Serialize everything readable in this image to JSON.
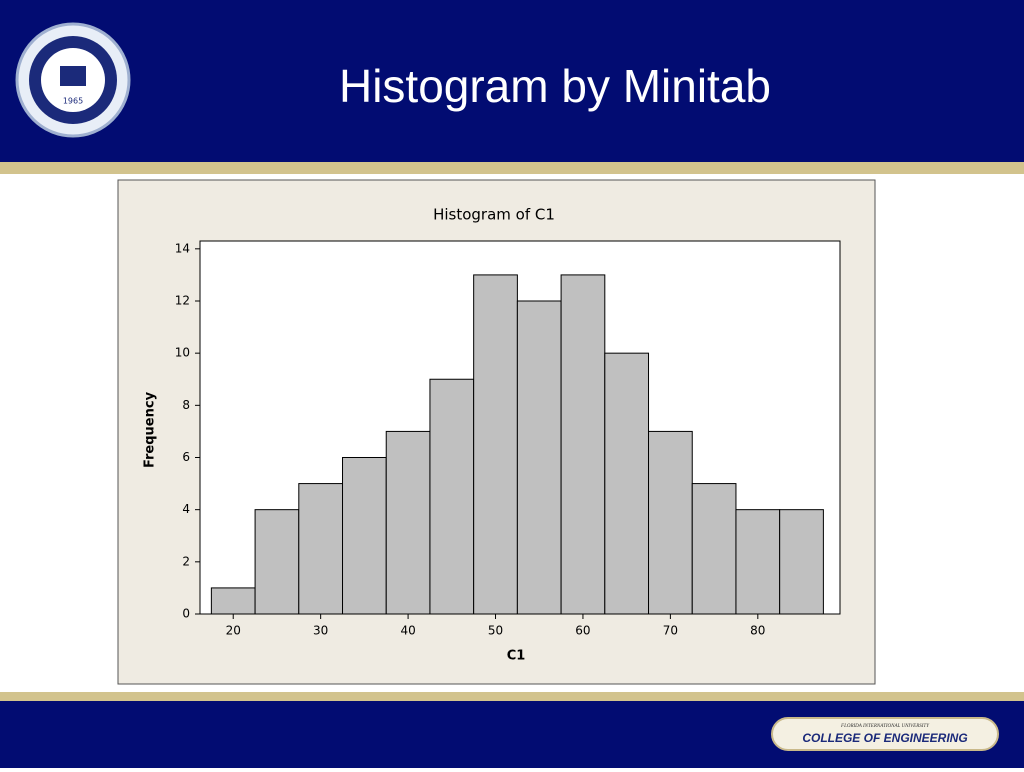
{
  "slide": {
    "title": "Histogram by Minitab",
    "seal_year": "1965",
    "footer_university": "FLORIDA INTERNATIONAL UNIVERSITY",
    "footer_college": "COLLEGE OF ENGINEERING"
  },
  "chart_data": {
    "type": "histogram",
    "title": "Histogram of C1",
    "x_label": "C1",
    "y_label": "Frequency",
    "bins": [
      17.5,
      22.5,
      27.5,
      32.5,
      37.5,
      42.5,
      47.5,
      52.5,
      57.5,
      62.5,
      67.5,
      72.5,
      77.5,
      82.5,
      87.5
    ],
    "values": [
      1,
      4,
      5,
      6,
      7,
      9,
      13,
      12,
      13,
      10,
      7,
      5,
      4,
      4
    ],
    "color": "#c0c0c0",
    "xlim": [
      16.2,
      89.4
    ],
    "xticks": [
      20,
      30,
      40,
      50,
      60,
      70,
      80
    ],
    "ylim": [
      0,
      14.3
    ],
    "yticks": [
      0,
      2,
      4,
      6,
      8,
      10,
      12,
      14
    ]
  }
}
